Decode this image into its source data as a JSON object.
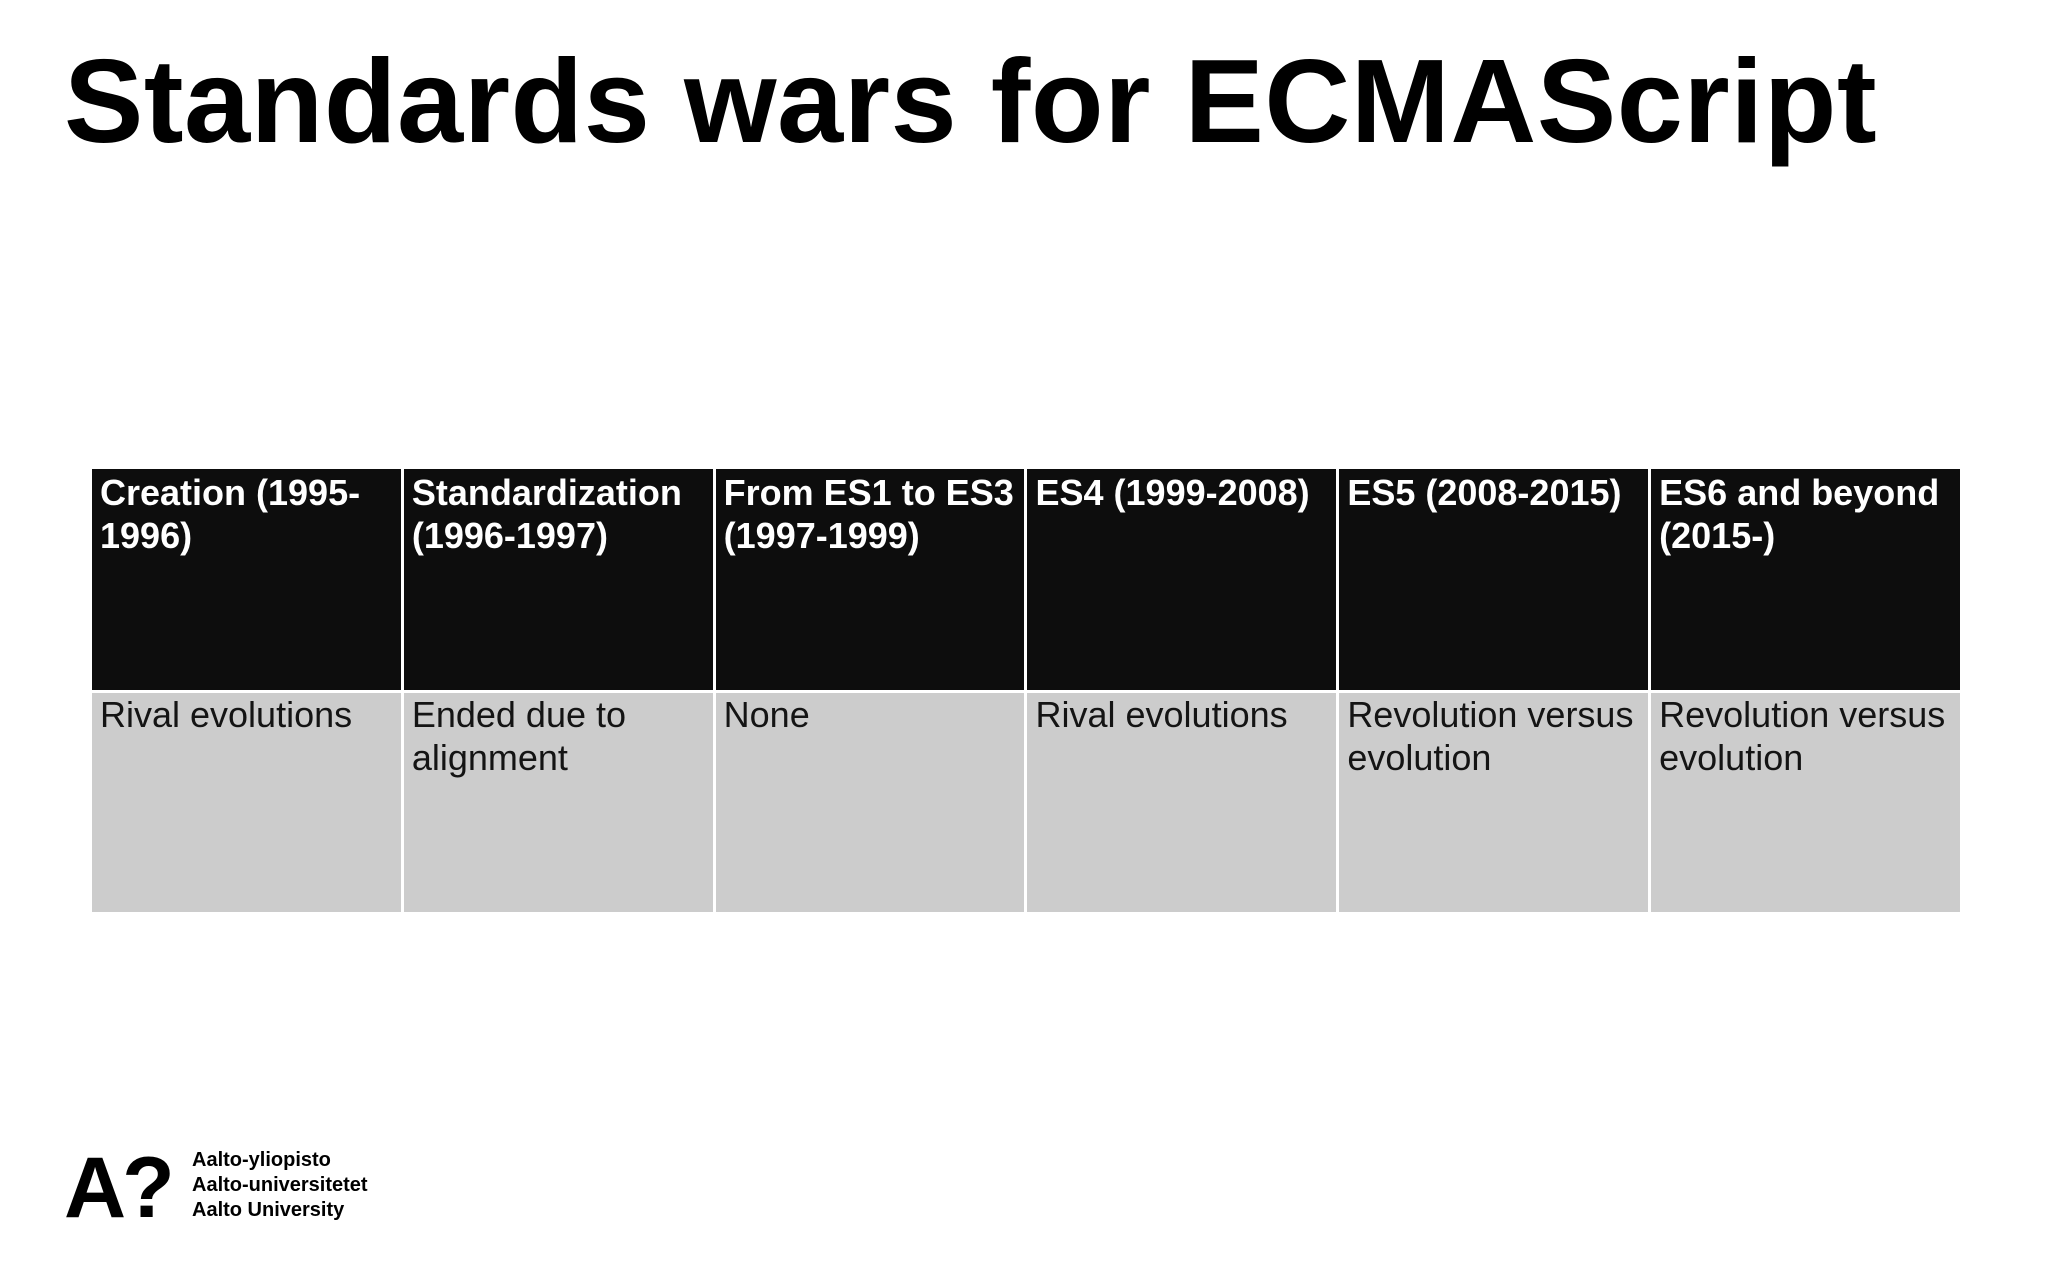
{
  "slide": {
    "title": "Standards wars for ECMAScript"
  },
  "table": {
    "headers": [
      "Creation (1995-1996)",
      "Standardization (1996-1997)",
      "From ES1 to ES3 (1997-1999)",
      "ES4 (1999-2008)",
      "ES5 (2008-2015)",
      "ES6 and beyond (2015-)"
    ],
    "row": [
      "Rival evolutions",
      "Ended due to alignment",
      "None",
      "Rival evolutions",
      "Revolution versus evolution",
      "Revolution versus evolution"
    ],
    "header_bg": "#0d0d0d",
    "cell_bg": "#cccccc"
  },
  "logo": {
    "mark": "A?",
    "lines": [
      "Aalto-yliopisto",
      "Aalto-universitetet",
      "Aalto University"
    ]
  }
}
